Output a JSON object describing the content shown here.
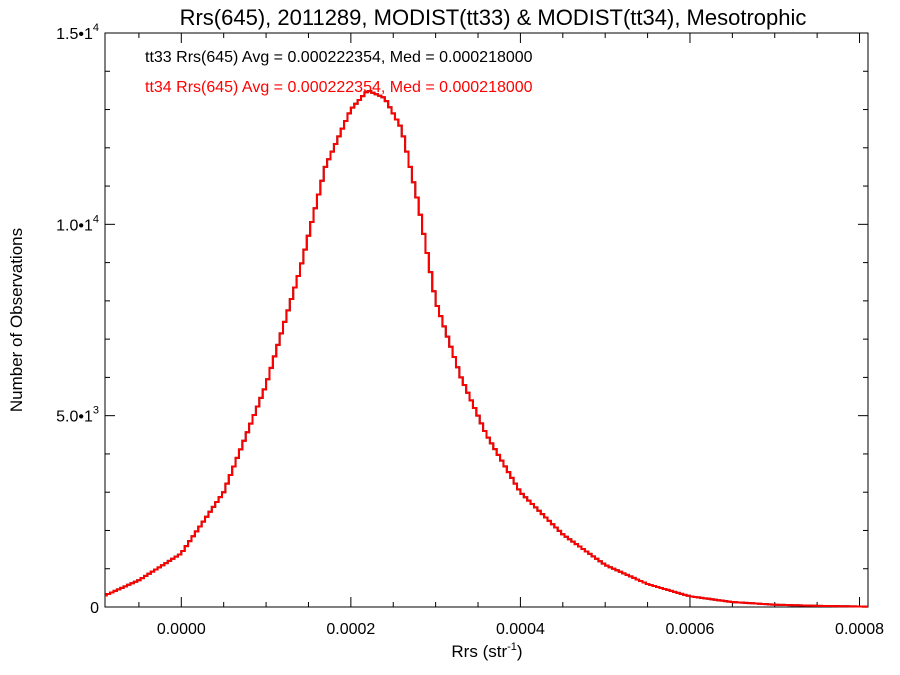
{
  "chart_data": {
    "type": "line",
    "step": true,
    "title": "Rrs(645), 2011289, MODIST(tt33) & MODIST(tt34), Mesotrophic",
    "xlabel_base": "Rrs (str",
    "xlabel_sup": "-1",
    "xlabel_tail": ")",
    "ylabel": "Number of Observations",
    "xlim": [
      -9e-05,
      0.00081
    ],
    "ylim": [
      0,
      15000
    ],
    "x_ticks": [
      0.0,
      0.0002,
      0.0004,
      0.0006,
      0.0008
    ],
    "x_tick_labels": [
      "0.0000",
      "0.0002",
      "0.0004",
      "0.0006",
      "0.0008"
    ],
    "y_ticks": [
      0,
      5000,
      10000,
      15000
    ],
    "y_tick_labels": [
      {
        "base": "0",
        "exp": ""
      },
      {
        "base": "5.0•1",
        "exp": "3"
      },
      {
        "base": "1.0•1",
        "exp": "4"
      },
      {
        "base": "1.5•1",
        "exp": "4"
      }
    ],
    "annotations": [
      {
        "text": "tt33 Rrs(645) Avg = 0.000222354, Med = 0.000218000",
        "color": "#000000"
      },
      {
        "text": "tt34 Rrs(645) Avg = 0.000222354, Med = 0.000218000",
        "color": "#ff0000"
      }
    ],
    "series": [
      {
        "color": "#000000",
        "x": [
          -9e-05,
          -5e-05,
          0.0,
          5e-05,
          0.0001,
          0.00014,
          0.00017,
          0.0002,
          0.00022,
          0.00024,
          0.00026,
          0.00028,
          0.0003,
          0.00033,
          0.00036,
          0.0004,
          0.00045,
          0.0005,
          0.00055,
          0.0006,
          0.00065,
          0.0007,
          0.00075,
          0.00081
        ],
        "y": [
          300,
          700,
          1400,
          3000,
          5800,
          8800,
          11500,
          13000,
          13500,
          13300,
          12500,
          10500,
          8000,
          6000,
          4500,
          3000,
          1900,
          1100,
          600,
          280,
          130,
          60,
          30,
          10
        ]
      },
      {
        "color": "#ff0000",
        "x": [
          -9e-05,
          -5e-05,
          0.0,
          5e-05,
          0.0001,
          0.00014,
          0.00017,
          0.0002,
          0.00022,
          0.00024,
          0.00026,
          0.00028,
          0.0003,
          0.00033,
          0.00036,
          0.0004,
          0.00045,
          0.0005,
          0.00055,
          0.0006,
          0.00065,
          0.0007,
          0.00075,
          0.00081
        ],
        "y": [
          300,
          700,
          1400,
          3000,
          5800,
          8800,
          11500,
          13000,
          13500,
          13300,
          12500,
          10500,
          8000,
          6000,
          4500,
          3000,
          1900,
          1100,
          600,
          280,
          130,
          60,
          30,
          10
        ]
      }
    ]
  }
}
